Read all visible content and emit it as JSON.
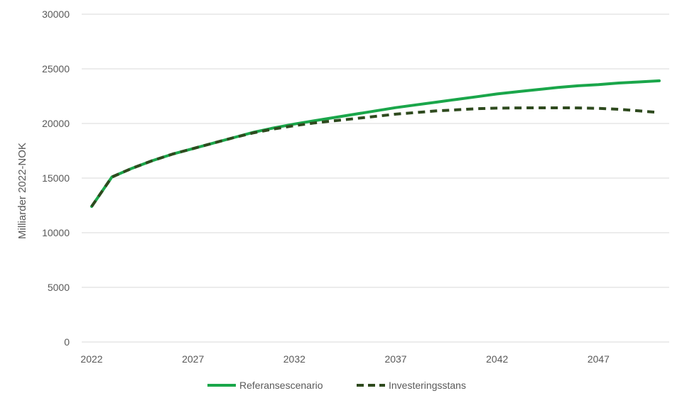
{
  "chart_data": {
    "type": "line",
    "title": "",
    "xlabel": "",
    "ylabel": "Milliarder 2022-NOK",
    "xlim": [
      2022,
      2050
    ],
    "ylim": [
      0,
      30000
    ],
    "x_ticks": [
      2022,
      2027,
      2032,
      2037,
      2042,
      2047
    ],
    "y_ticks": [
      0,
      5000,
      10000,
      15000,
      20000,
      25000,
      30000
    ],
    "grid": "horizontal",
    "legend_position": "bottom",
    "x": [
      2022,
      2023,
      2024,
      2025,
      2026,
      2027,
      2028,
      2029,
      2030,
      2031,
      2032,
      2033,
      2034,
      2035,
      2036,
      2037,
      2038,
      2039,
      2040,
      2041,
      2042,
      2043,
      2044,
      2045,
      2046,
      2047,
      2048,
      2049,
      2050
    ],
    "series": [
      {
        "name": "Referansescenario",
        "color": "#1aa64a",
        "style": "solid",
        "values": [
          12400,
          15100,
          15900,
          16600,
          17200,
          17700,
          18200,
          18700,
          19200,
          19600,
          19950,
          20250,
          20550,
          20850,
          21150,
          21450,
          21700,
          21950,
          22200,
          22450,
          22700,
          22900,
          23100,
          23300,
          23450,
          23550,
          23700,
          23800,
          23900
        ]
      },
      {
        "name": "Investeringsstans",
        "color": "#2e4a1e",
        "style": "dashed",
        "values": [
          12400,
          15100,
          15900,
          16600,
          17200,
          17700,
          18200,
          18700,
          19150,
          19500,
          19800,
          20050,
          20250,
          20450,
          20650,
          20850,
          21000,
          21150,
          21250,
          21350,
          21400,
          21420,
          21430,
          21430,
          21420,
          21380,
          21300,
          21150,
          21000
        ]
      }
    ]
  }
}
